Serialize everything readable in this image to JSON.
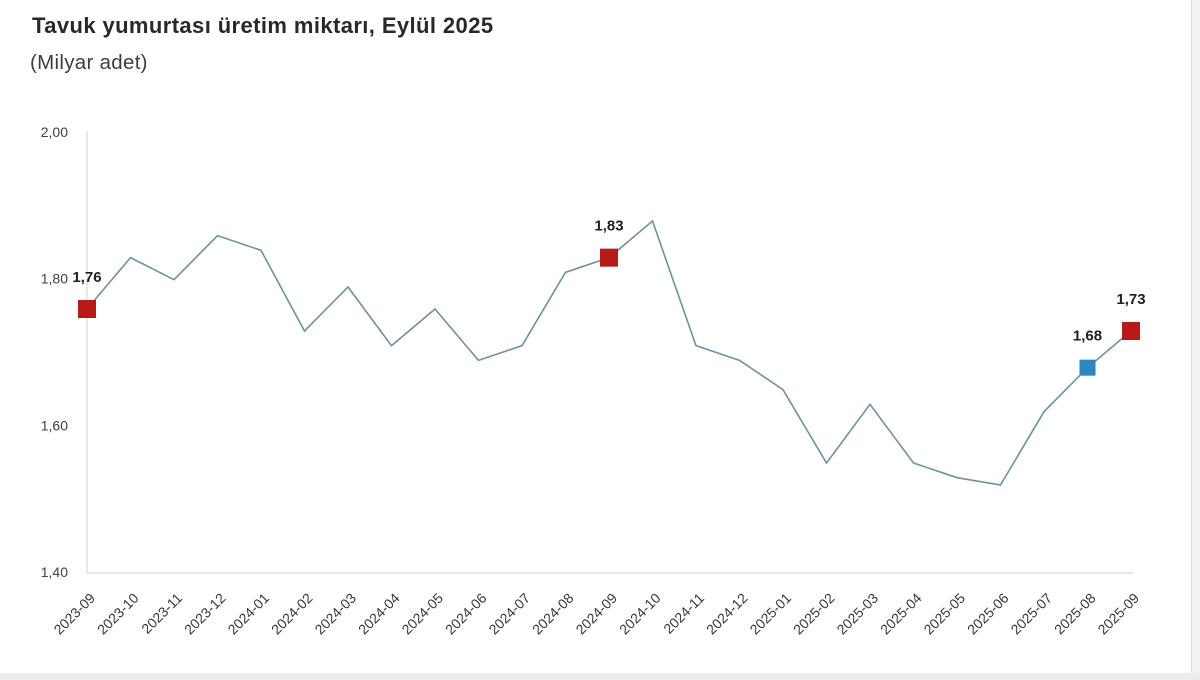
{
  "title": "Tavuk yumurtası üretim miktarı, Eylül 2025",
  "subtitle": "(Milyar adet)",
  "chart_data": {
    "type": "line",
    "categories": [
      "2023-09",
      "2023-10",
      "2023-11",
      "2023-12",
      "2024-01",
      "2024-02",
      "2024-03",
      "2024-04",
      "2024-05",
      "2024-06",
      "2024-07",
      "2024-08",
      "2024-09",
      "2024-10",
      "2024-11",
      "2024-12",
      "2025-01",
      "2025-02",
      "2025-03",
      "2025-04",
      "2025-05",
      "2025-06",
      "2025-07",
      "2025-08",
      "2025-09"
    ],
    "values": [
      1.76,
      1.83,
      1.8,
      1.86,
      1.84,
      1.73,
      1.79,
      1.71,
      1.76,
      1.69,
      1.71,
      1.81,
      1.83,
      1.88,
      1.71,
      1.69,
      1.65,
      1.55,
      1.63,
      1.55,
      1.53,
      1.52,
      1.62,
      1.68,
      1.73
    ],
    "ylim": [
      1.4,
      2.0
    ],
    "yticks": [
      {
        "value": 2.0,
        "label": "2,00"
      },
      {
        "value": 1.8,
        "label": "1,80"
      },
      {
        "value": 1.6,
        "label": "1,60"
      },
      {
        "value": 1.4,
        "label": "1,40"
      }
    ],
    "markers": [
      {
        "index": 0,
        "label": "1,76",
        "color": "#b71a17",
        "size": 18
      },
      {
        "index": 12,
        "label": "1,83",
        "color": "#b71a17",
        "size": 18
      },
      {
        "index": 23,
        "label": "1,68",
        "color": "#2e86c5",
        "size": 16
      },
      {
        "index": 24,
        "label": "1,73",
        "color": "#b71a17",
        "size": 18
      }
    ],
    "line_color": "#6b93a0",
    "axis_color": "#d2d2d2",
    "grid": false,
    "legend": false,
    "xlabel": "",
    "ylabel": ""
  }
}
